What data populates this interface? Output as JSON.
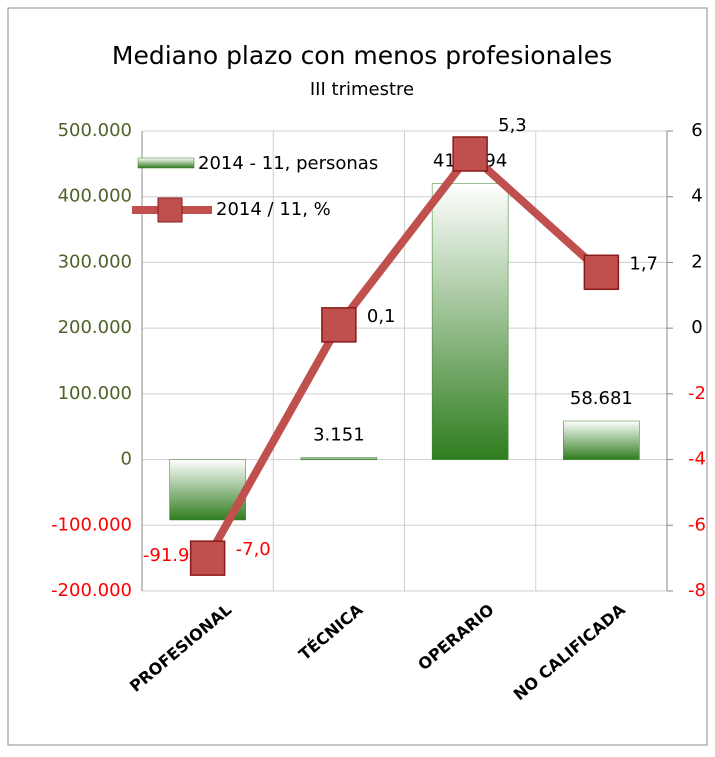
{
  "chart_data": {
    "type": "bar",
    "title": "Mediano plazo con menos profesionales",
    "subtitle": "III trimestre",
    "categories": [
      "PROFESIONAL",
      "TÉCNICA",
      "OPERARIO",
      "NO CALIFICADA"
    ],
    "series": [
      {
        "name": "2014 - 11, personas",
        "type": "bar",
        "color": "#2f7d1e",
        "values": [
          -91927,
          3151,
          419894,
          58681
        ],
        "value_labels": [
          "-91.927",
          "3.151",
          "419.894",
          "58.681"
        ]
      },
      {
        "name": "2014 / 11, %",
        "type": "line",
        "axis": "y2",
        "color": "#c0504d",
        "values": [
          -7.0,
          0.1,
          5.3,
          1.7
        ],
        "value_labels": [
          "-7,0",
          "0,1",
          "5,3",
          "1,7"
        ]
      }
    ],
    "ylim": [
      -200000,
      500000
    ],
    "yticks": [
      {
        "value": -200000,
        "label": "-200.000"
      },
      {
        "value": -100000,
        "label": "-100.000"
      },
      0,
      {
        "value": 100000,
        "label": "100.000"
      },
      {
        "value": 200000,
        "label": "200.000"
      },
      {
        "value": 300000,
        "label": "300.000"
      },
      {
        "value": 400000,
        "label": "400.000"
      },
      {
        "value": 500000,
        "label": "500.000"
      }
    ],
    "y2lim": [
      -8,
      6
    ],
    "y2ticks": [
      -8,
      -6,
      -4,
      -2,
      0,
      2,
      4,
      6
    ],
    "grid": true,
    "legend": "top-left"
  }
}
